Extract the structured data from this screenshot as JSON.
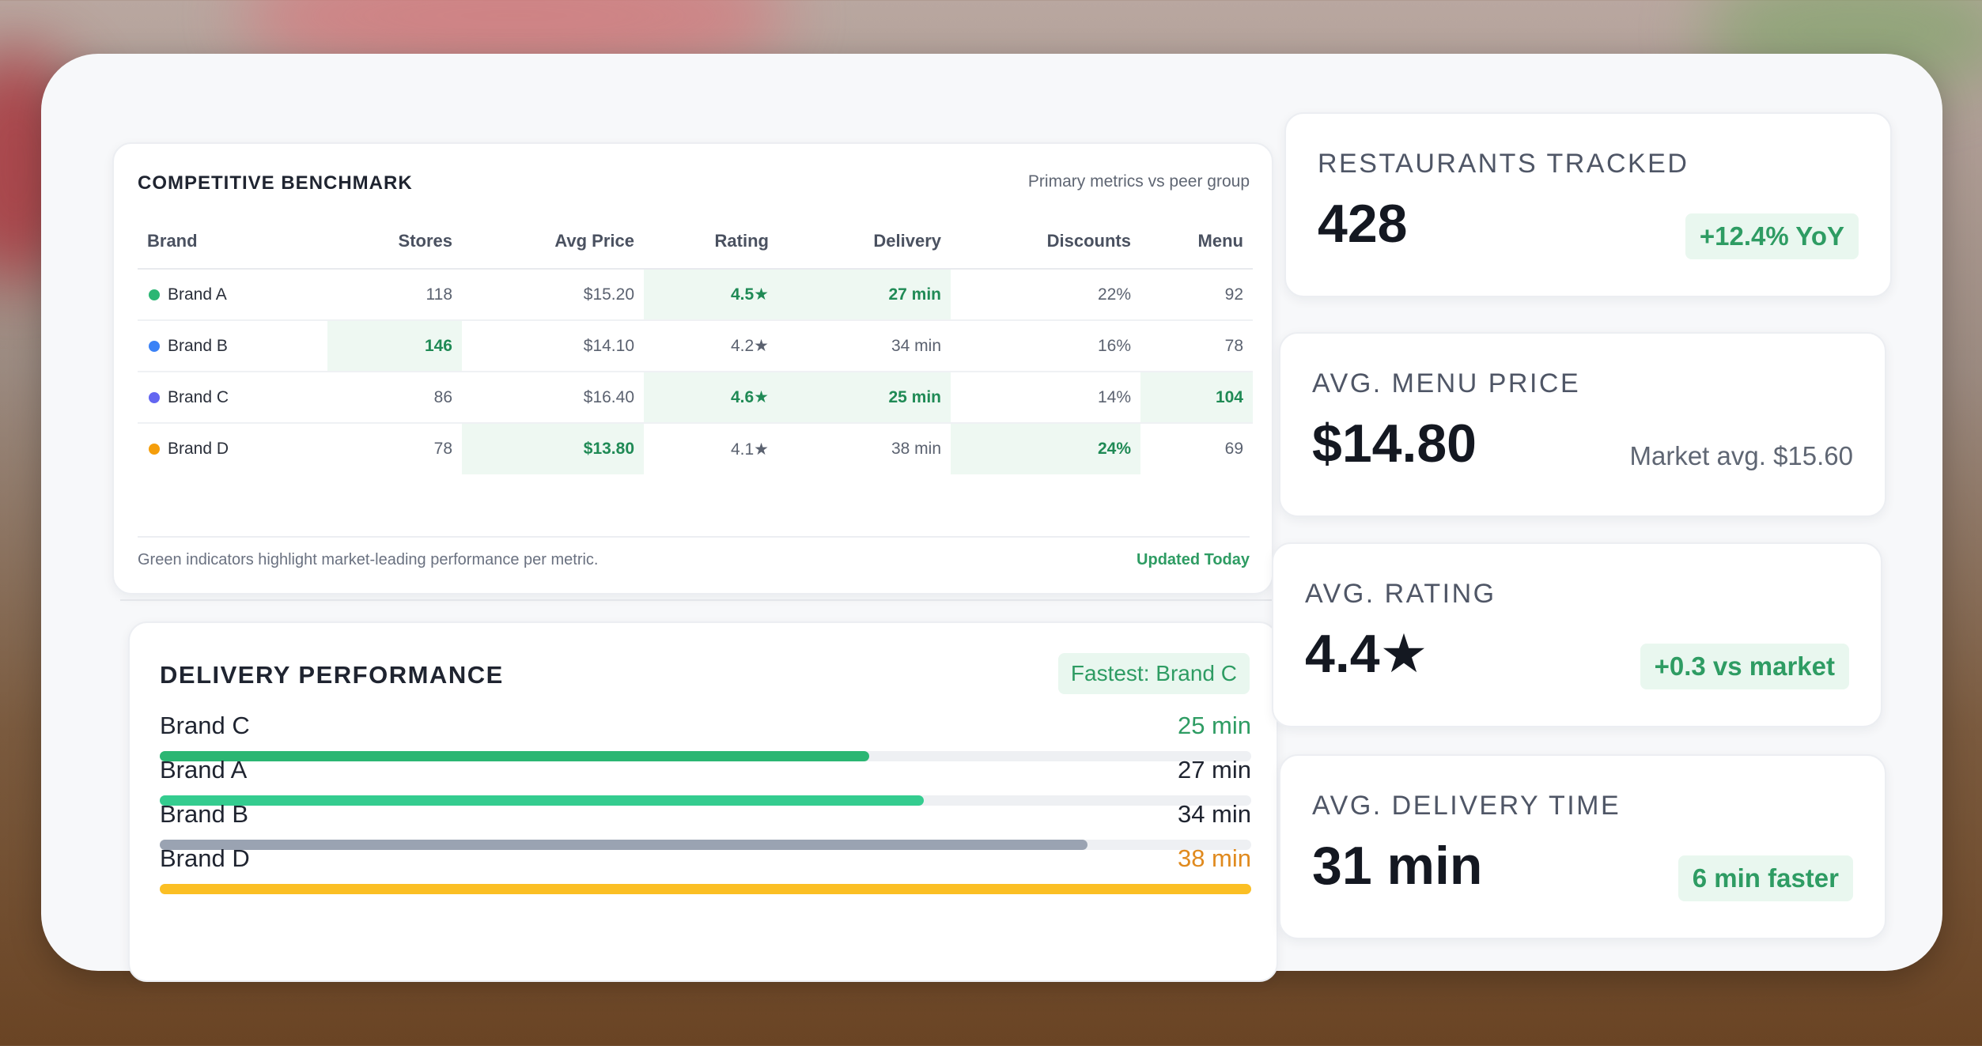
{
  "benchmark": {
    "title": "COMPETITIVE BENCHMARK",
    "subtitle": "Primary metrics vs peer group",
    "columns": [
      "Brand",
      "Stores",
      "Avg Price",
      "Rating",
      "Delivery",
      "Discounts",
      "Menu"
    ],
    "rows": [
      {
        "brand": "Brand A",
        "color": "#2bb673",
        "stores": "118",
        "avg_price": "$15.20",
        "rating": "4.5★",
        "delivery": "27 min",
        "discounts": "22%",
        "menu": "92",
        "highlight": [
          "rating",
          "delivery"
        ]
      },
      {
        "brand": "Brand B",
        "color": "#3b82f6",
        "stores": "146",
        "avg_price": "$14.10",
        "rating": "4.2★",
        "delivery": "34 min",
        "discounts": "16%",
        "menu": "78",
        "highlight": [
          "stores"
        ]
      },
      {
        "brand": "Brand C",
        "color": "#6366f1",
        "stores": "86",
        "avg_price": "$16.40",
        "rating": "4.6★",
        "delivery": "25 min",
        "discounts": "14%",
        "menu": "104",
        "highlight": [
          "rating",
          "delivery",
          "menu"
        ]
      },
      {
        "brand": "Brand D",
        "color": "#f59e0b",
        "stores": "78",
        "avg_price": "$13.80",
        "rating": "4.1★",
        "delivery": "38 min",
        "discounts": "24%",
        "menu": "69",
        "highlight": [
          "avg_price",
          "discounts"
        ]
      }
    ],
    "footnote": "Green indicators highlight market-leading performance per metric.",
    "updated": "Updated Today"
  },
  "delivery": {
    "title": "DELIVERY PERFORMANCE",
    "badge": "Fastest: Brand C",
    "items": [
      {
        "name": "Brand C",
        "value": "25 min",
        "fill_pct": 65,
        "color": "#2bb673",
        "value_color": "#2e9c63"
      },
      {
        "name": "Brand A",
        "value": "27 min",
        "fill_pct": 70,
        "color": "#34cc8f",
        "value_color": "#1f2430"
      },
      {
        "name": "Brand B",
        "value": "34 min",
        "fill_pct": 85,
        "color": "#9aa3b2",
        "value_color": "#1f2430"
      },
      {
        "name": "Brand D",
        "value": "38 min",
        "fill_pct": 100,
        "color": "#fbbf24",
        "value_color": "#e08a1e"
      }
    ]
  },
  "kpis": {
    "restaurants": {
      "label": "RESTAURANTS TRACKED",
      "value": "428",
      "badge": "+12.4% YoY"
    },
    "menu_price": {
      "label": "AVG. MENU PRICE",
      "value": "$14.80",
      "note": "Market avg. $15.60"
    },
    "rating": {
      "label": "AVG. RATING",
      "value": "4.4★",
      "badge": "+0.3 vs market"
    },
    "delivery_time": {
      "label": "AVG. DELIVERY TIME",
      "value": "31 min",
      "badge": "6 min faster"
    }
  }
}
